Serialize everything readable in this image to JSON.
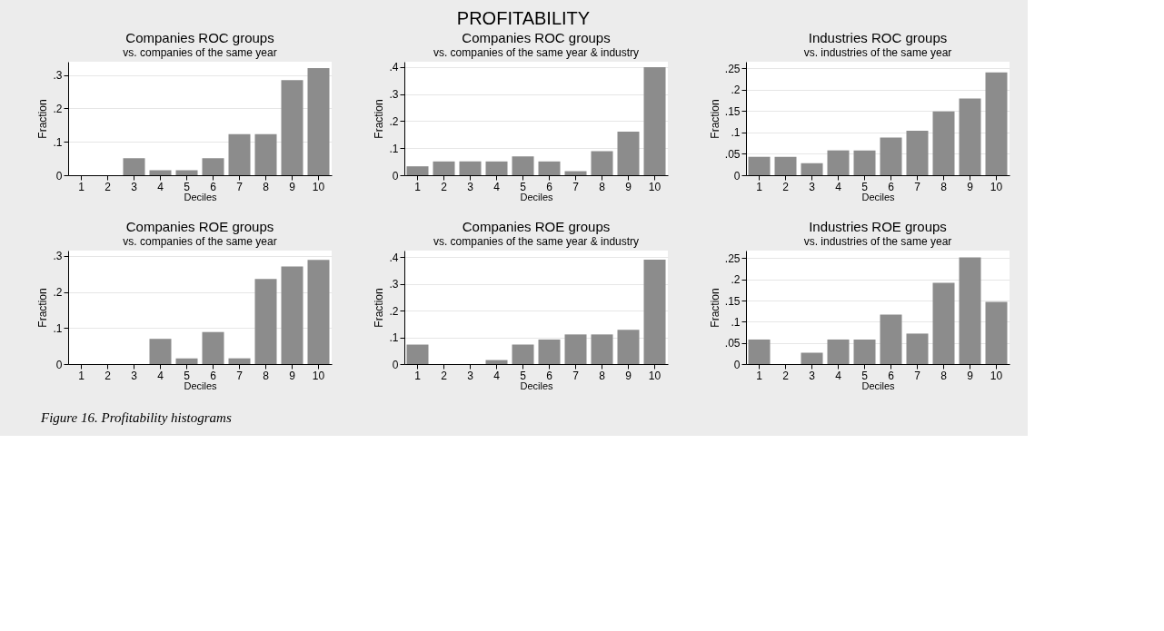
{
  "chart_data": [
    {
      "type": "bar",
      "title": "Companies ROC groups",
      "subtitle": "vs. companies of the same year",
      "xlabel": "Deciles",
      "ylabel": "Fraction",
      "annotations": [
        "PROFITABILITY",
        "Figure 16. Profitability histograms"
      ],
      "categories": [
        "1",
        "2",
        "3",
        "4",
        "5",
        "6",
        "7",
        "8",
        "9",
        "10"
      ],
      "values": [
        0,
        0,
        0.051,
        0.015,
        0.015,
        0.051,
        0.123,
        0.123,
        0.285,
        0.321
      ],
      "color": "#8c8c8c",
      "ylim": [
        0,
        0.34
      ],
      "yticks": [
        0,
        {
          "value": 0.1,
          "label": ".1"
        },
        {
          "value": 0.2,
          "label": ".2"
        },
        {
          "value": 0.3,
          "label": ".3"
        }
      ],
      "grid": "y"
    },
    {
      "type": "bar",
      "title": "Companies ROC groups",
      "subtitle": "vs. companies of the same year & industry",
      "xlabel": "Deciles",
      "ylabel": "Fraction",
      "categories": [
        "1",
        "2",
        "3",
        "4",
        "5",
        "6",
        "7",
        "8",
        "9",
        "10"
      ],
      "values": [
        0.033,
        0.051,
        0.051,
        0.051,
        0.07,
        0.051,
        0.015,
        0.089,
        0.161,
        0.4
      ],
      "color": "#8c8c8c",
      "ylim": [
        0,
        0.42
      ],
      "yticks": [
        0,
        {
          "value": 0.1,
          "label": ".1"
        },
        {
          "value": 0.2,
          "label": ".2"
        },
        {
          "value": 0.3,
          "label": ".3"
        },
        {
          "value": 0.4,
          "label": ".4"
        }
      ],
      "grid": "y"
    },
    {
      "type": "bar",
      "title": "Industries ROC groups",
      "subtitle": "vs. industries of the same year",
      "xlabel": "Deciles",
      "ylabel": "Fraction",
      "categories": [
        "1",
        "2",
        "3",
        "4",
        "5",
        "6",
        "7",
        "8",
        "9",
        "10"
      ],
      "values": [
        0.043,
        0.043,
        0.028,
        0.058,
        0.058,
        0.088,
        0.104,
        0.149,
        0.179,
        0.24
      ],
      "color": "#8c8c8c",
      "ylim": [
        0,
        0.265
      ],
      "yticks": [
        0,
        {
          "value": 0.05,
          "label": ".05"
        },
        {
          "value": 0.1,
          "label": ".1"
        },
        {
          "value": 0.15,
          "label": ".15"
        },
        {
          "value": 0.2,
          "label": ".2"
        },
        {
          "value": 0.25,
          "label": ".25"
        }
      ],
      "grid": "y"
    },
    {
      "type": "bar",
      "title": "Companies ROE groups",
      "subtitle": "vs. companies  of the same year",
      "xlabel": "Deciles",
      "ylabel": "Fraction",
      "categories": [
        "1",
        "2",
        "3",
        "4",
        "5",
        "6",
        "7",
        "8",
        "9",
        "10"
      ],
      "values": [
        0,
        0,
        0,
        0.07,
        0.016,
        0.089,
        0.016,
        0.236,
        0.271,
        0.289
      ],
      "color": "#8c8c8c",
      "ylim": [
        0,
        0.315
      ],
      "yticks": [
        0,
        {
          "value": 0.1,
          "label": ".1"
        },
        {
          "value": 0.2,
          "label": ".2"
        },
        {
          "value": 0.3,
          "label": ".3"
        }
      ],
      "grid": "y"
    },
    {
      "type": "bar",
      "title": "Companies ROE groups",
      "subtitle": "vs. companies  of the same year & industry",
      "xlabel": "Deciles",
      "ylabel": "Fraction",
      "categories": [
        "1",
        "2",
        "3",
        "4",
        "5",
        "6",
        "7",
        "8",
        "9",
        "10"
      ],
      "values": [
        0.073,
        0,
        0,
        0.015,
        0.073,
        0.092,
        0.111,
        0.111,
        0.128,
        0.391
      ],
      "color": "#8c8c8c",
      "ylim": [
        0,
        0.425
      ],
      "yticks": [
        0,
        {
          "value": 0.1,
          "label": ".1"
        },
        {
          "value": 0.2,
          "label": ".2"
        },
        {
          "value": 0.3,
          "label": ".3"
        },
        {
          "value": 0.4,
          "label": ".4"
        }
      ],
      "grid": "y"
    },
    {
      "type": "bar",
      "title": "Industries ROE groups",
      "subtitle": "vs. industries of the same year",
      "xlabel": "Deciles",
      "ylabel": "Fraction",
      "categories": [
        "1",
        "2",
        "3",
        "4",
        "5",
        "6",
        "7",
        "8",
        "9",
        "10"
      ],
      "values": [
        0.058,
        0,
        0.027,
        0.058,
        0.058,
        0.117,
        0.072,
        0.192,
        0.252,
        0.147
      ],
      "color": "#8c8c8c",
      "ylim": [
        0,
        0.268
      ],
      "yticks": [
        0,
        {
          "value": 0.05,
          "label": ".05"
        },
        {
          "value": 0.1,
          "label": ".1"
        },
        {
          "value": 0.15,
          "label": ".15"
        },
        {
          "value": 0.2,
          "label": ".2"
        },
        {
          "value": 0.25,
          "label": ".25"
        }
      ],
      "grid": "y"
    }
  ]
}
